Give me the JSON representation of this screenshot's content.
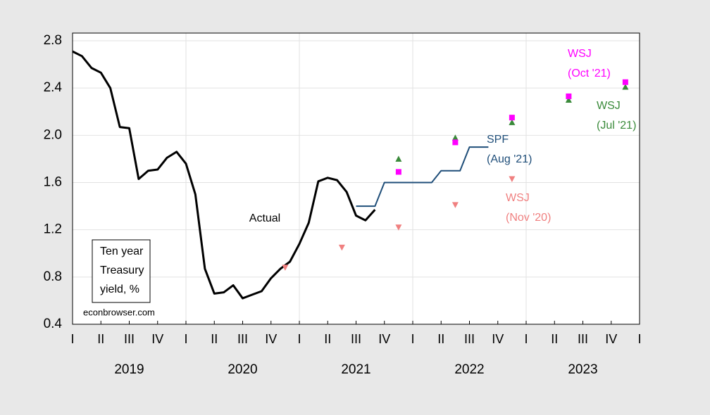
{
  "chart_data": {
    "type": "line",
    "ylim": [
      0.4,
      2.8
    ],
    "yticks": [
      0.4,
      0.8,
      1.2,
      1.6,
      {
        "value": 2,
        "label": "2.0"
      },
      2.4,
      2.8
    ],
    "xlim": [
      2019,
      2024
    ],
    "xticks": [
      {
        "value": 2019,
        "label": "I"
      },
      {
        "value": 2019.25,
        "label": "II"
      },
      {
        "value": 2019.5,
        "label": "III"
      },
      {
        "value": 2019.75,
        "label": "IV"
      },
      {
        "value": 2020,
        "label": "I"
      },
      {
        "value": 2020.25,
        "label": "II"
      },
      {
        "value": 2020.5,
        "label": "III"
      },
      {
        "value": 2020.75,
        "label": "IV"
      },
      {
        "value": 2021,
        "label": "I"
      },
      {
        "value": 2021.25,
        "label": "II"
      },
      {
        "value": 2021.5,
        "label": "III"
      },
      {
        "value": 2021.75,
        "label": "IV"
      },
      {
        "value": 2022,
        "label": "I"
      },
      {
        "value": 2022.25,
        "label": "II"
      },
      {
        "value": 2022.5,
        "label": "III"
      },
      {
        "value": 2022.75,
        "label": "IV"
      },
      {
        "value": 2023,
        "label": "I"
      },
      {
        "value": 2023.25,
        "label": "II"
      },
      {
        "value": 2023.5,
        "label": "III"
      },
      {
        "value": 2023.75,
        "label": "IV"
      },
      {
        "value": 2024,
        "label": "I"
      }
    ],
    "year_labels": [
      {
        "value": 2019.5,
        "label": "2019"
      },
      {
        "value": 2020.5,
        "label": "2020"
      },
      {
        "value": 2021.5,
        "label": "2021"
      },
      {
        "value": 2022.5,
        "label": "2022"
      },
      {
        "value": 2023.5,
        "label": "2023"
      }
    ],
    "grid": true,
    "series": [
      {
        "name": "Actual",
        "color": "#000000",
        "marker": "none",
        "x": [
          2019,
          2019.083,
          2019.167,
          2019.25,
          2019.333,
          2019.417,
          2019.5,
          2019.583,
          2019.667,
          2019.75,
          2019.833,
          2019.917,
          2020,
          2020.083,
          2020.167,
          2020.25,
          2020.333,
          2020.417,
          2020.5,
          2020.583,
          2020.667,
          2020.75,
          2020.833,
          2020.917,
          2021,
          2021.083,
          2021.167,
          2021.25,
          2021.333,
          2021.417,
          2021.5,
          2021.583,
          2021.667
        ],
        "values": [
          2.71,
          2.67,
          2.57,
          2.53,
          2.4,
          2.07,
          2.06,
          1.63,
          1.7,
          1.71,
          1.81,
          1.86,
          1.76,
          1.5,
          0.87,
          0.66,
          0.67,
          0.73,
          0.62,
          0.65,
          0.68,
          0.79,
          0.87,
          0.93,
          1.08,
          1.26,
          1.61,
          1.64,
          1.62,
          1.52,
          1.32,
          1.28,
          1.37
        ]
      },
      {
        "name": "SPF",
        "sublabel": "(Aug '21)",
        "color": "#1f4e79",
        "marker": "none",
        "x": [
          2021.5,
          2021.583,
          2021.667,
          2021.75,
          2021.833,
          2021.917,
          2022,
          2022.083,
          2022.167,
          2022.25,
          2022.333,
          2022.417,
          2022.5,
          2022.583,
          2022.667
        ],
        "values": [
          1.4,
          1.4,
          1.4,
          1.6,
          1.6,
          1.6,
          1.6,
          1.6,
          1.6,
          1.7,
          1.7,
          1.7,
          1.9,
          1.9,
          1.9
        ]
      },
      {
        "name": "WSJ",
        "sublabel": "(Nov '20)",
        "color": "#f08080",
        "marker": "triangle-down",
        "x": [
          2020.875,
          2021.375,
          2021.875,
          2022.375,
          2022.875
        ],
        "values": [
          0.88,
          1.05,
          1.22,
          1.41,
          1.63
        ]
      },
      {
        "name": "WSJ",
        "sublabel": "(Jul '21)",
        "color": "#3a8a3a",
        "marker": "triangle-up",
        "x": [
          2021.875,
          2022.375,
          2022.875,
          2023.375,
          2023.875
        ],
        "values": [
          1.8,
          1.98,
          2.11,
          2.3,
          2.41
        ]
      },
      {
        "name": "WSJ",
        "sublabel": "(Oct '21)",
        "color": "#ff00ff",
        "marker": "square",
        "x": [
          2021.875,
          2022.375,
          2022.875,
          2023.375,
          2023.875
        ],
        "values": [
          1.69,
          1.94,
          2.15,
          2.33,
          2.45
        ]
      }
    ],
    "note_box": [
      "Ten year",
      "Treasury",
      "yield, %"
    ],
    "source": "econbrowser.com"
  }
}
